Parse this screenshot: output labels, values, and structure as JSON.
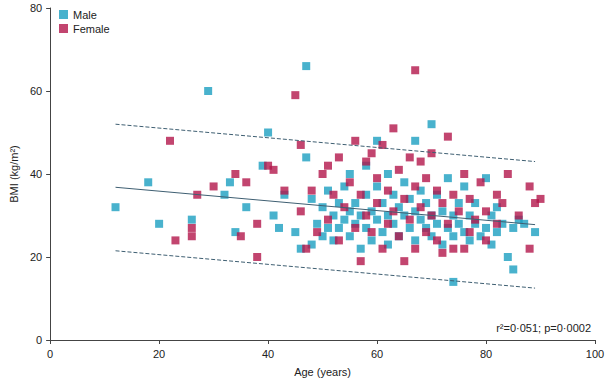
{
  "chart_data": {
    "type": "scatter",
    "x_label": "Age (years)",
    "y_label": "BMI (kg/m²)",
    "annotation": "r²=0·051; p=0·0002",
    "xlim": [
      0,
      100
    ],
    "xticks": [
      0,
      20,
      40,
      60,
      80,
      100
    ],
    "ylim": [
      0,
      80
    ],
    "yticks": [
      0,
      20,
      40,
      60,
      80
    ],
    "grid": false,
    "legend": "top-left",
    "series": [
      {
        "name": "Male",
        "type": "scatter",
        "marker": "square",
        "color": "#1c9fc1",
        "x": [
          12,
          18,
          20,
          26,
          29,
          32,
          33,
          34,
          36,
          39,
          40,
          41,
          42,
          43,
          45,
          46,
          47,
          47,
          48,
          48,
          49,
          50,
          50,
          51,
          51,
          52,
          52,
          53,
          53,
          54,
          54,
          55,
          55,
          55,
          56,
          56,
          57,
          57,
          58,
          58,
          58,
          59,
          59,
          60,
          60,
          60,
          61,
          61,
          62,
          62,
          62,
          63,
          63,
          64,
          64,
          65,
          65,
          66,
          66,
          67,
          67,
          67,
          68,
          68,
          69,
          69,
          70,
          70,
          70,
          71,
          71,
          72,
          72,
          73,
          73,
          74,
          74,
          74,
          75,
          75,
          76,
          76,
          77,
          77,
          78,
          78,
          79,
          80,
          80,
          81,
          81,
          82,
          82,
          83,
          84,
          85,
          85,
          86,
          87,
          89
        ],
        "values": [
          32,
          38,
          28,
          29,
          60,
          35,
          38,
          26,
          32,
          42,
          50,
          30,
          27,
          35,
          26,
          22,
          66,
          44,
          23,
          34,
          28,
          25,
          32,
          27,
          36,
          30,
          24,
          27,
          33,
          29,
          37,
          31,
          25,
          40,
          28,
          33,
          30,
          22,
          27,
          35,
          42,
          31,
          24,
          29,
          37,
          48,
          26,
          33,
          30,
          40,
          23,
          28,
          35,
          32,
          25,
          30,
          38,
          27,
          34,
          31,
          24,
          48,
          29,
          36,
          27,
          33,
          52,
          30,
          25,
          28,
          35,
          31,
          23,
          27,
          39,
          14,
          30,
          25,
          33,
          28,
          26,
          37,
          30,
          24,
          28,
          33,
          25,
          39,
          27,
          30,
          23,
          26,
          32,
          28,
          20,
          17,
          27,
          29,
          28,
          26
        ]
      },
      {
        "name": "Female",
        "type": "scatter",
        "marker": "square",
        "color": "#b3164b",
        "x": [
          22,
          23,
          26,
          26,
          27,
          30,
          34,
          35,
          36,
          38,
          38,
          40,
          41,
          43,
          45,
          46,
          46,
          47,
          48,
          49,
          50,
          51,
          51,
          52,
          53,
          53,
          54,
          55,
          56,
          56,
          57,
          57,
          58,
          58,
          59,
          59,
          60,
          60,
          61,
          61,
          62,
          62,
          63,
          63,
          64,
          64,
          65,
          65,
          66,
          66,
          67,
          67,
          67,
          68,
          68,
          69,
          69,
          70,
          70,
          71,
          71,
          72,
          72,
          73,
          73,
          74,
          74,
          75,
          76,
          76,
          77,
          77,
          78,
          79,
          80,
          80,
          82,
          82,
          83,
          84,
          86,
          88,
          88,
          89,
          90
        ],
        "values": [
          48,
          24,
          25,
          27,
          35,
          37,
          40,
          25,
          38,
          20,
          28,
          42,
          41,
          36,
          59,
          47,
          31,
          22,
          36,
          26,
          40,
          42,
          29,
          35,
          24,
          44,
          32,
          38,
          27,
          48,
          35,
          19,
          43,
          30,
          45,
          26,
          33,
          39,
          22,
          47,
          36,
          28,
          51,
          31,
          25,
          41,
          19,
          34,
          44,
          29,
          65,
          37,
          22,
          32,
          43,
          26,
          39,
          30,
          45,
          24,
          36,
          33,
          21,
          49,
          28,
          22,
          35,
          31,
          22,
          40,
          34,
          26,
          29,
          38,
          24,
          31,
          28,
          35,
          33,
          40,
          30,
          37,
          22,
          33,
          34
        ]
      },
      {
        "type": "line",
        "line_style": "solid",
        "color": "#3f5f72",
        "x": [
          12,
          89
        ],
        "values": [
          36.8,
          27.8
        ]
      },
      {
        "type": "line",
        "line_style": "dashed",
        "color": "#3f5f72",
        "x": [
          12,
          89
        ],
        "values": [
          52,
          43
        ]
      },
      {
        "type": "line",
        "line_style": "dashed",
        "color": "#3f5f72",
        "x": [
          12,
          89
        ],
        "values": [
          21.5,
          12.5
        ]
      }
    ]
  }
}
